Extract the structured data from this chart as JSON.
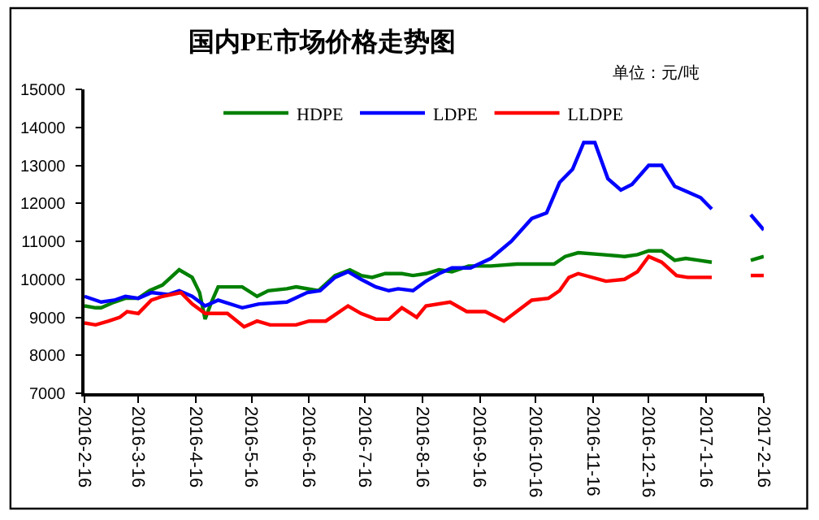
{
  "chart_data": {
    "type": "line",
    "title": "国内PE市场价格走势图",
    "subtitle": "单位：元/吨",
    "xlim": [
      "2016-02-16",
      "2017-02-16"
    ],
    "xticks": [
      {
        "value": "2016-02-16",
        "label": "2016-2-16"
      },
      {
        "value": "2016-03-16",
        "label": "2016-3-16"
      },
      {
        "value": "2016-04-16",
        "label": "2016-4-16"
      },
      {
        "value": "2016-05-16",
        "label": "2016-5-16"
      },
      {
        "value": "2016-06-16",
        "label": "2016-6-16"
      },
      {
        "value": "2016-07-16",
        "label": "2016-7-16"
      },
      {
        "value": "2016-08-16",
        "label": "2016-8-16"
      },
      {
        "value": "2016-09-16",
        "label": "2016-9-16"
      },
      {
        "value": "2016-10-16",
        "label": "2016-10-16"
      },
      {
        "value": "2016-11-16",
        "label": "2016-11-16"
      },
      {
        "value": "2016-12-16",
        "label": "2016-12-16"
      },
      {
        "value": "2017-01-16",
        "label": "2017-1-16"
      },
      {
        "value": "2017-02-16",
        "label": "2017-2-16"
      }
    ],
    "ylim": [
      7000,
      15000
    ],
    "yticks": [
      7000,
      8000,
      9000,
      10000,
      11000,
      12000,
      13000,
      14000,
      15000
    ],
    "legend": "top",
    "marker": "none",
    "line_style": "solid",
    "series": [
      {
        "name": "HDPE",
        "color": "#008000",
        "x": [
          "2016-02-16",
          "2016-02-22",
          "2016-02-25",
          "2016-03-03",
          "2016-03-09",
          "2016-03-16",
          "2016-03-22",
          "2016-03-29",
          "2016-04-07",
          "2016-04-14",
          "2016-04-18",
          "2016-04-21",
          "2016-04-24",
          "2016-04-28",
          "2016-05-11",
          "2016-05-19",
          "2016-05-25",
          "2016-06-04",
          "2016-06-09",
          "2016-06-21",
          "2016-06-30",
          "2016-07-08",
          "2016-07-14",
          "2016-07-20",
          "2016-07-27",
          "2016-08-05",
          "2016-08-11",
          "2016-08-18",
          "2016-08-25",
          "2016-09-01",
          "2016-09-10",
          "2016-09-22",
          "2016-10-06",
          "2016-10-26",
          "2016-11-01",
          "2016-11-08",
          "2016-11-21",
          "2016-12-03",
          "2016-12-10",
          "2016-12-16",
          "2016-12-23",
          "2016-12-30",
          "2017-01-05",
          "2017-01-12",
          "2017-01-19",
          "2017-01-26",
          "2017-02-09",
          "2017-02-16"
        ],
        "values": [
          9300,
          9250,
          9250,
          9400,
          9500,
          9500,
          9700,
          9850,
          10250,
          10050,
          9650,
          8950,
          9350,
          9800,
          9800,
          9550,
          9700,
          9750,
          9800,
          9700,
          10100,
          10250,
          10100,
          10050,
          10150,
          10150,
          10100,
          10150,
          10250,
          10200,
          10350,
          10350,
          10400,
          10400,
          10600,
          10700,
          10650,
          10600,
          10650,
          10750,
          10750,
          10500,
          10550,
          10500,
          10450,
          null,
          10500,
          10600
        ]
      },
      {
        "name": "LDPE",
        "color": "#0000ff",
        "x": [
          "2016-02-16",
          "2016-02-25",
          "2016-03-03",
          "2016-03-09",
          "2016-03-16",
          "2016-03-23",
          "2016-04-01",
          "2016-04-07",
          "2016-04-14",
          "2016-04-21",
          "2016-04-28",
          "2016-05-11",
          "2016-05-20",
          "2016-06-04",
          "2016-06-15",
          "2016-06-22",
          "2016-06-30",
          "2016-07-07",
          "2016-07-14",
          "2016-07-22",
          "2016-07-29",
          "2016-08-03",
          "2016-08-11",
          "2016-08-18",
          "2016-08-25",
          "2016-09-01",
          "2016-09-11",
          "2016-09-22",
          "2016-10-03",
          "2016-10-14",
          "2016-10-22",
          "2016-10-29",
          "2016-11-05",
          "2016-11-11",
          "2016-11-17",
          "2016-11-24",
          "2016-12-01",
          "2016-12-07",
          "2016-12-16",
          "2016-12-23",
          "2016-12-30",
          "2017-01-06",
          "2017-01-13",
          "2017-01-19",
          "2017-01-26",
          "2017-02-09",
          "2017-02-16"
        ],
        "values": [
          9550,
          9400,
          9450,
          9550,
          9500,
          9650,
          9600,
          9700,
          9550,
          9300,
          9450,
          9250,
          9350,
          9400,
          9650,
          9700,
          10050,
          10200,
          10000,
          9800,
          9700,
          9750,
          9700,
          9950,
          10150,
          10300,
          10300,
          10550,
          11000,
          11600,
          11750,
          12550,
          12900,
          13600,
          13600,
          12650,
          12350,
          12500,
          13000,
          13000,
          12450,
          12300,
          12150,
          11850,
          null,
          11700,
          11300
        ]
      },
      {
        "name": "LLDPE",
        "color": "#ff0000",
        "x": [
          "2016-02-16",
          "2016-02-22",
          "2016-02-29",
          "2016-03-06",
          "2016-03-10",
          "2016-03-16",
          "2016-03-23",
          "2016-03-29",
          "2016-04-08",
          "2016-04-14",
          "2016-04-21",
          "2016-05-03",
          "2016-05-12",
          "2016-05-19",
          "2016-05-26",
          "2016-06-09",
          "2016-06-16",
          "2016-06-25",
          "2016-07-07",
          "2016-07-14",
          "2016-07-22",
          "2016-07-29",
          "2016-08-05",
          "2016-08-13",
          "2016-08-18",
          "2016-08-31",
          "2016-09-09",
          "2016-09-19",
          "2016-09-29",
          "2016-10-14",
          "2016-10-23",
          "2016-10-29",
          "2016-11-03",
          "2016-11-08",
          "2016-11-23",
          "2016-12-03",
          "2016-12-10",
          "2016-12-16",
          "2016-12-23",
          "2016-12-31",
          "2017-01-06",
          "2017-01-19",
          "2017-01-26",
          "2017-02-09",
          "2017-02-16"
        ],
        "values": [
          8850,
          8800,
          8900,
          9000,
          9150,
          9100,
          9450,
          9550,
          9650,
          9350,
          9100,
          9100,
          8750,
          8900,
          8800,
          8800,
          8900,
          8900,
          9300,
          9100,
          8950,
          8950,
          9250,
          9000,
          9300,
          9400,
          9150,
          9150,
          8900,
          9450,
          9500,
          9700,
          10050,
          10150,
          9950,
          10000,
          10200,
          10600,
          10450,
          10100,
          10050,
          10050,
          null,
          10100,
          10100
        ]
      }
    ]
  }
}
